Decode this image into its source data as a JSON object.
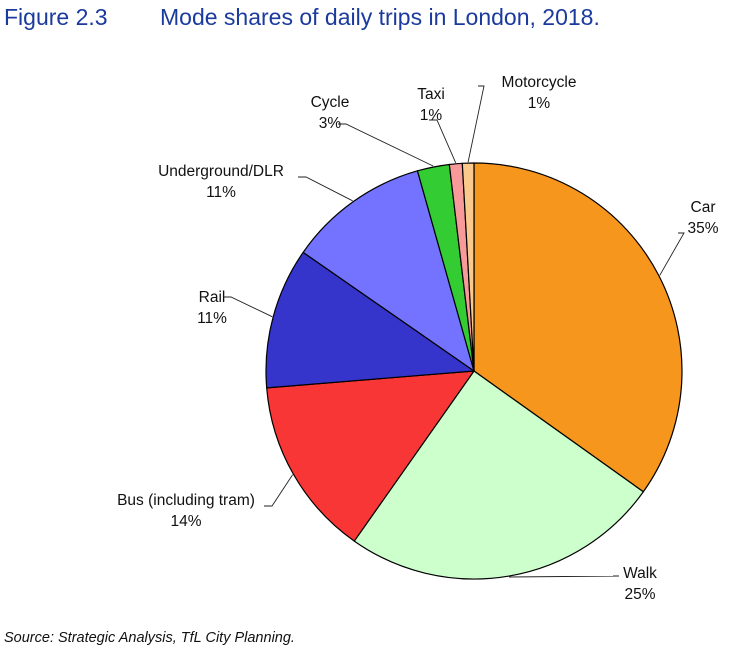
{
  "header": {
    "figure_number": "Figure 2.3",
    "title": "Mode shares of daily trips in London, 2018."
  },
  "chart_data": {
    "type": "pie",
    "start": "12 o'clock, clockwise",
    "slices": [
      {
        "label": "Car",
        "value": 35,
        "value_label": "35%",
        "color": "#f7961c"
      },
      {
        "label": "Walk",
        "value": 25,
        "value_label": "25%",
        "color": "#ccffcc"
      },
      {
        "label": "Bus (including tram)",
        "value": 14,
        "value_label": "14%",
        "color": "#f93636"
      },
      {
        "label": "Rail",
        "value": 11,
        "value_label": "11%",
        "color": "#3535cc"
      },
      {
        "label": "Underground/DLR",
        "value": 11,
        "value_label": "11%",
        "color": "#7373ff"
      },
      {
        "label": "Cycle",
        "value": 2.5,
        "value_label": "3%",
        "color": "#33cc33"
      },
      {
        "label": "Taxi",
        "value": 1,
        "value_label": "1%",
        "color": "#f99a9a"
      },
      {
        "label": "Motorcycle",
        "value": 0.9,
        "value_label": "1%",
        "color": "#fbc98c"
      }
    ]
  },
  "source": "Source: Strategic Analysis, TfL City Planning."
}
